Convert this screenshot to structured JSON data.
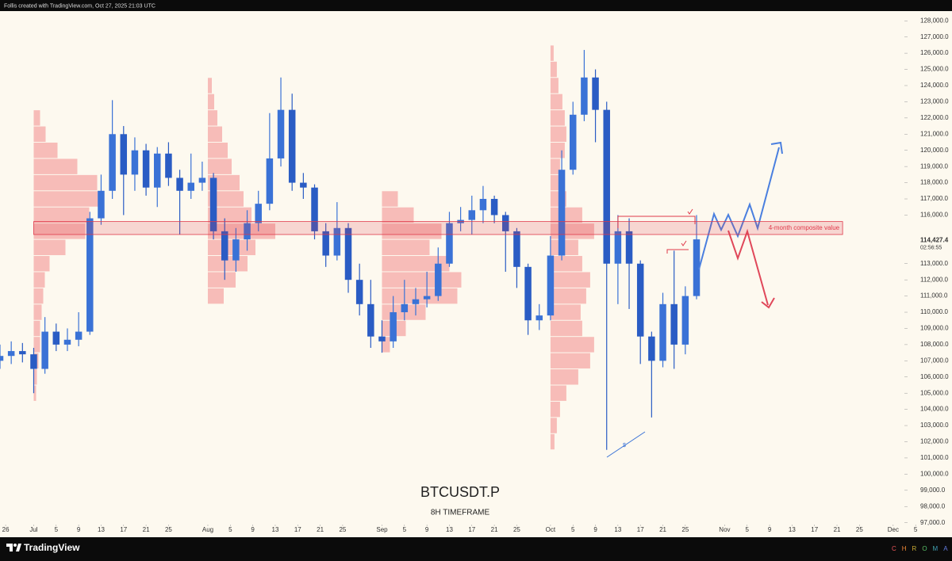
{
  "header": {
    "text": "Follis created with TradingView.com, Oct 27, 2025 21:03 UTC"
  },
  "footer": {
    "logo": "TradingView",
    "brand": "CHROMA"
  },
  "chart_data": {
    "type": "candlestick",
    "title": "BTCUSDT.P",
    "subtitle": "8H TIMEFRAME",
    "up_color": "#3a72d6",
    "down_color": "#2a5cc4",
    "xlim": [
      "2025-06-25",
      "2025-12-03"
    ],
    "ylim": [
      96200,
      128600
    ],
    "x": [
      "2025-06-24",
      "2025-06-26",
      "2025-06-28",
      "2025-06-30",
      "2025-07-02",
      "2025-07-04",
      "2025-07-06",
      "2025-07-08",
      "2025-07-10",
      "2025-07-12",
      "2025-07-14",
      "2025-07-16",
      "2025-07-18",
      "2025-07-20",
      "2025-07-22",
      "2025-07-24",
      "2025-07-26",
      "2025-07-28",
      "2025-07-30",
      "2025-08-01",
      "2025-08-03",
      "2025-08-05",
      "2025-08-07",
      "2025-08-09",
      "2025-08-11",
      "2025-08-13",
      "2025-08-15",
      "2025-08-17",
      "2025-08-19",
      "2025-08-21",
      "2025-08-23",
      "2025-08-25",
      "2025-08-27",
      "2025-08-29",
      "2025-08-31",
      "2025-09-02",
      "2025-09-04",
      "2025-09-06",
      "2025-09-08",
      "2025-09-10",
      "2025-09-12",
      "2025-09-14",
      "2025-09-16",
      "2025-09-18",
      "2025-09-20",
      "2025-09-22",
      "2025-09-24",
      "2025-09-26",
      "2025-09-28",
      "2025-09-30",
      "2025-10-02",
      "2025-10-04",
      "2025-10-06",
      "2025-10-08",
      "2025-10-10",
      "2025-10-12",
      "2025-10-14",
      "2025-10-16",
      "2025-10-18",
      "2025-10-20",
      "2025-10-22",
      "2025-10-24",
      "2025-10-26"
    ],
    "open": [
      107000,
      107300,
      107600,
      107400,
      106500,
      108800,
      108000,
      108300,
      108800,
      115800,
      117500,
      121000,
      118500,
      120000,
      117700,
      119800,
      118300,
      117500,
      118000,
      118300,
      115000,
      113200,
      114500,
      115500,
      116700,
      119500,
      122500,
      118000,
      117700,
      115000,
      113500,
      115200,
      112000,
      110500,
      108500,
      108200,
      110000,
      110500,
      110800,
      111000,
      113000,
      115500,
      115700,
      116300,
      117000,
      116000,
      115000,
      112800,
      109500,
      109800,
      113500,
      118800,
      122200,
      124500,
      122500,
      113000,
      115000,
      113000,
      108500,
      107000,
      110500,
      108000,
      111000
    ],
    "high": [
      108000,
      108200,
      108100,
      107800,
      109700,
      109300,
      109000,
      110000,
      116200,
      118500,
      123100,
      121500,
      120800,
      120400,
      120200,
      120500,
      118800,
      119800,
      119300,
      118600,
      115800,
      115200,
      116300,
      117500,
      122300,
      124500,
      123500,
      118600,
      117900,
      115500,
      116800,
      115500,
      113000,
      112000,
      109500,
      111000,
      112000,
      111500,
      112500,
      114000,
      116200,
      116500,
      117200,
      117800,
      117200,
      116200,
      115200,
      113000,
      110500,
      114700,
      120000,
      123000,
      126200,
      125000,
      123000,
      116000,
      115800,
      113200,
      108800,
      111200,
      113800,
      111600,
      116000
    ],
    "low": [
      106500,
      106800,
      106900,
      105000,
      106200,
      107600,
      107600,
      107900,
      108600,
      115400,
      117000,
      116000,
      117500,
      117200,
      116500,
      117800,
      114800,
      117000,
      117500,
      114500,
      112000,
      112500,
      113800,
      115000,
      116300,
      119000,
      117500,
      117000,
      114500,
      112800,
      113200,
      111200,
      109800,
      107800,
      107500,
      107800,
      109500,
      109800,
      110300,
      110700,
      112800,
      115000,
      114800,
      115500,
      115500,
      112500,
      111500,
      108600,
      108900,
      109500,
      113200,
      118500,
      121800,
      120500,
      101500,
      110500,
      110200,
      106800,
      103500,
      106600,
      106500,
      107400,
      110800
    ],
    "close": [
      107300,
      107600,
      107400,
      106500,
      108800,
      108000,
      108300,
      108800,
      115800,
      117500,
      121000,
      118500,
      120000,
      117700,
      119800,
      118300,
      117500,
      118000,
      118300,
      115000,
      113200,
      114500,
      115500,
      116700,
      119500,
      122500,
      118000,
      117700,
      115000,
      113500,
      115200,
      112000,
      110500,
      108500,
      108200,
      110000,
      110500,
      110800,
      111000,
      113000,
      115500,
      115700,
      116300,
      117000,
      116000,
      115000,
      112800,
      109500,
      109800,
      113500,
      118800,
      122200,
      124500,
      122500,
      113000,
      115000,
      113000,
      108500,
      107000,
      110500,
      108000,
      111000,
      114500
    ],
    "volume_profiles": [
      {
        "start": "2025-07-01",
        "color": "#f28b8b",
        "prices": [
          105000,
          106000,
          107000,
          108000,
          109000,
          110000,
          111000,
          112000,
          113000,
          114000,
          115000,
          116000,
          117000,
          118000,
          119000,
          120000,
          121000,
          122000
        ],
        "volumes": [
          3,
          4,
          6,
          8,
          8,
          10,
          12,
          14,
          20,
          40,
          65,
          70,
          85,
          80,
          55,
          30,
          15,
          8
        ]
      },
      {
        "start": "2025-08-01",
        "color": "#f28b8b",
        "prices": [
          111000,
          112000,
          113000,
          114000,
          115000,
          116000,
          117000,
          118000,
          119000,
          120000,
          121000,
          122000,
          123000,
          124000
        ],
        "volumes": [
          20,
          35,
          50,
          60,
          85,
          55,
          45,
          40,
          30,
          25,
          18,
          12,
          8,
          5
        ]
      },
      {
        "start": "2025-09-01",
        "color": "#f28b8b",
        "prices": [
          108000,
          109000,
          110000,
          111000,
          112000,
          113000,
          114000,
          115000,
          116000,
          117000
        ],
        "volumes": [
          10,
          30,
          55,
          95,
          100,
          85,
          60,
          75,
          40,
          20
        ]
      },
      {
        "start": "2025-10-01",
        "color": "#f28b8b",
        "prices": [
          102000,
          103000,
          104000,
          105000,
          106000,
          107000,
          108000,
          109000,
          110000,
          111000,
          112000,
          113000,
          114000,
          115000,
          116000,
          117000,
          118000,
          119000,
          120000,
          121000,
          122000,
          123000,
          124000,
          125000,
          126000
        ],
        "volumes": [
          5,
          8,
          12,
          20,
          35,
          50,
          55,
          40,
          38,
          45,
          50,
          40,
          35,
          55,
          40,
          20,
          15,
          12,
          18,
          20,
          18,
          15,
          10,
          8,
          4
        ]
      }
    ],
    "composite_value": {
      "label": "4-month composite value",
      "low": 114800,
      "high": 115600,
      "start": "2025-07-01",
      "end": "2025-11-22",
      "color": "#e0394a"
    },
    "last_price": {
      "value": 114427.4,
      "label": "114,427.4",
      "countdown": "02:56:55"
    },
    "swing_marker": "$",
    "yticks": [
      {
        "value": 97000,
        "label": "97,000.0"
      },
      {
        "value": 98000,
        "label": "98,000.0"
      },
      {
        "value": 99000,
        "label": "99,000.0"
      },
      {
        "value": 100000,
        "label": "100,000.0"
      },
      {
        "value": 101000,
        "label": "101,000.0"
      },
      {
        "value": 102000,
        "label": "102,000.0"
      },
      {
        "value": 103000,
        "label": "103,000.0"
      },
      {
        "value": 104000,
        "label": "104,000.0"
      },
      {
        "value": 105000,
        "label": "105,000.0"
      },
      {
        "value": 106000,
        "label": "106,000.0"
      },
      {
        "value": 107000,
        "label": "107,000.0"
      },
      {
        "value": 108000,
        "label": "108,000.0"
      },
      {
        "value": 109000,
        "label": "109,000.0"
      },
      {
        "value": 110000,
        "label": "110,000.0"
      },
      {
        "value": 111000,
        "label": "111,000.0"
      },
      {
        "value": 112000,
        "label": "112,000.0"
      },
      {
        "value": 113000,
        "label": "113,000.0"
      },
      {
        "value": 116000,
        "label": "116,000.0"
      },
      {
        "value": 117000,
        "label": "117,000.0"
      },
      {
        "value": 118000,
        "label": "118,000.0"
      },
      {
        "value": 119000,
        "label": "119,000.0"
      },
      {
        "value": 120000,
        "label": "120,000.0"
      },
      {
        "value": 121000,
        "label": "121,000.0"
      },
      {
        "value": 122000,
        "label": "122,000.0"
      },
      {
        "value": 123000,
        "label": "123,000.0"
      },
      {
        "value": 124000,
        "label": "124,000.0"
      },
      {
        "value": 125000,
        "label": "125,000.0"
      },
      {
        "value": 126000,
        "label": "126,000.0"
      },
      {
        "value": 127000,
        "label": "127,000.0"
      },
      {
        "value": 128000,
        "label": "128,000.0"
      }
    ],
    "xticks": [
      {
        "value": "2025-06-26",
        "label": "26"
      },
      {
        "value": "2025-07-01",
        "label": "Jul"
      },
      {
        "value": "2025-07-05",
        "label": "5"
      },
      {
        "value": "2025-07-09",
        "label": "9"
      },
      {
        "value": "2025-07-13",
        "label": "13"
      },
      {
        "value": "2025-07-17",
        "label": "17"
      },
      {
        "value": "2025-07-21",
        "label": "21"
      },
      {
        "value": "2025-07-25",
        "label": "25"
      },
      {
        "value": "2025-08-01",
        "label": "Aug"
      },
      {
        "value": "2025-08-05",
        "label": "5"
      },
      {
        "value": "2025-08-09",
        "label": "9"
      },
      {
        "value": "2025-08-13",
        "label": "13"
      },
      {
        "value": "2025-08-17",
        "label": "17"
      },
      {
        "value": "2025-08-21",
        "label": "21"
      },
      {
        "value": "2025-08-25",
        "label": "25"
      },
      {
        "value": "2025-09-01",
        "label": "Sep"
      },
      {
        "value": "2025-09-05",
        "label": "5"
      },
      {
        "value": "2025-09-09",
        "label": "9"
      },
      {
        "value": "2025-09-13",
        "label": "13"
      },
      {
        "value": "2025-09-17",
        "label": "17"
      },
      {
        "value": "2025-09-21",
        "label": "21"
      },
      {
        "value": "2025-09-25",
        "label": "25"
      },
      {
        "value": "2025-10-01",
        "label": "Oct"
      },
      {
        "value": "2025-10-05",
        "label": "5"
      },
      {
        "value": "2025-10-09",
        "label": "9"
      },
      {
        "value": "2025-10-13",
        "label": "13"
      },
      {
        "value": "2025-10-17",
        "label": "17"
      },
      {
        "value": "2025-10-21",
        "label": "21"
      },
      {
        "value": "2025-10-25",
        "label": "25"
      },
      {
        "value": "2025-11-01",
        "label": "Nov"
      },
      {
        "value": "2025-11-05",
        "label": "5"
      },
      {
        "value": "2025-11-09",
        "label": "9"
      },
      {
        "value": "2025-11-13",
        "label": "13"
      },
      {
        "value": "2025-11-17",
        "label": "17"
      },
      {
        "value": "2025-11-21",
        "label": "21"
      },
      {
        "value": "2025-11-25",
        "label": "25"
      },
      {
        "value": "2025-12-01",
        "label": "Dec"
      },
      {
        "value": "2025-12-05",
        "label": "5"
      }
    ]
  }
}
